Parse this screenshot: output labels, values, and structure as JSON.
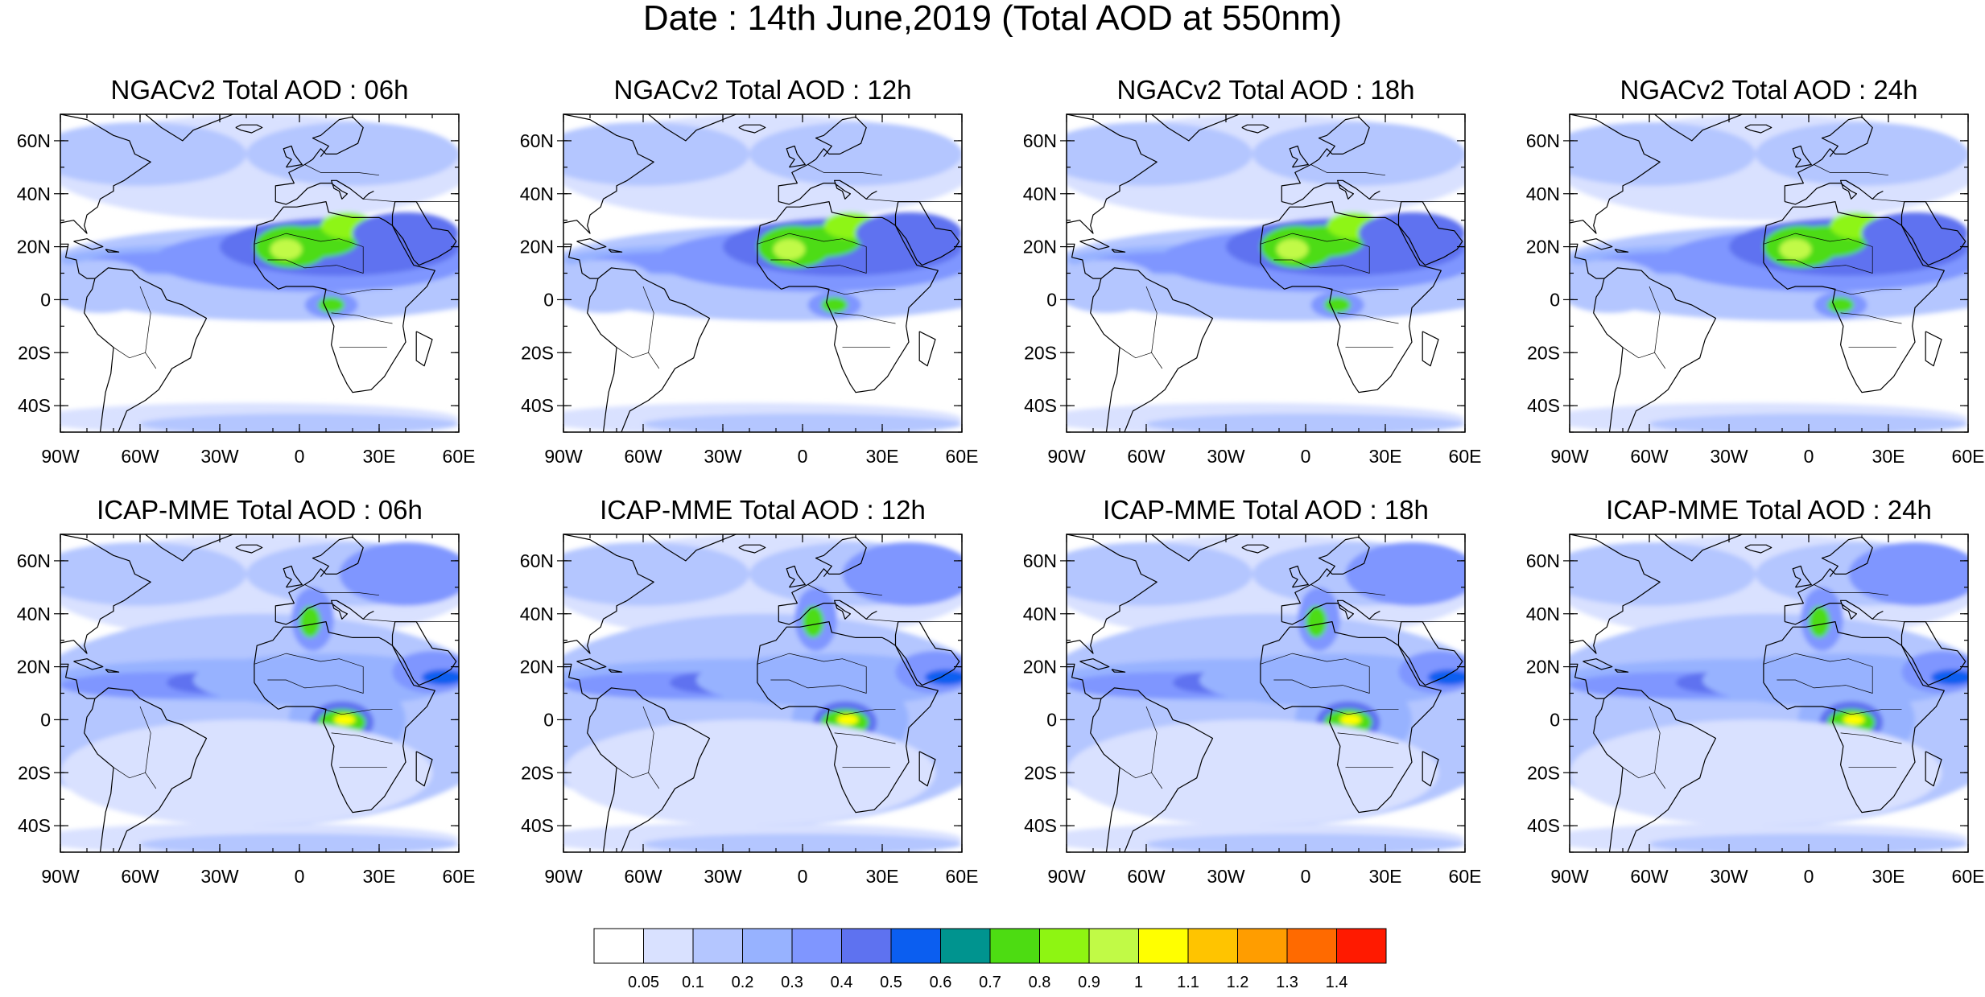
{
  "title": "Date : 14th June,2019 (Total AOD at 550nm)",
  "lat_labels": [
    "60N",
    "40N",
    "20N",
    "0",
    "20S",
    "40S"
  ],
  "lon_labels": [
    "90W",
    "60W",
    "30W",
    "0",
    "30E",
    "60E"
  ],
  "map_extent": {
    "lon": [
      -90,
      60
    ],
    "lat": [
      -50,
      70
    ]
  },
  "panels": [
    {
      "title": "NGACv2 Total AOD : 06h",
      "model": "NGACv2",
      "hour": "06h"
    },
    {
      "title": "NGACv2 Total AOD : 12h",
      "model": "NGACv2",
      "hour": "12h"
    },
    {
      "title": "NGACv2 Total AOD : 18h",
      "model": "NGACv2",
      "hour": "18h"
    },
    {
      "title": "NGACv2 Total AOD : 24h",
      "model": "NGACv2",
      "hour": "24h"
    },
    {
      "title": "ICAP-MME Total AOD : 06h",
      "model": "ICAP-MME",
      "hour": "06h"
    },
    {
      "title": "ICAP-MME Total AOD : 12h",
      "model": "ICAP-MME",
      "hour": "12h"
    },
    {
      "title": "ICAP-MME Total AOD : 18h",
      "model": "ICAP-MME",
      "hour": "18h"
    },
    {
      "title": "ICAP-MME Total AOD : 24h",
      "model": "ICAP-MME",
      "hour": "24h"
    }
  ],
  "colorbar": {
    "labels": [
      "0.05",
      "0.1",
      "0.2",
      "0.3",
      "0.4",
      "0.5",
      "0.6",
      "0.7",
      "0.8",
      "0.9",
      "1",
      "1.1",
      "1.2",
      "1.3",
      "1.4"
    ],
    "colors": [
      "#ffffff",
      "#d9e1ff",
      "#b4c6ff",
      "#97b2ff",
      "#7f96ff",
      "#5e72f0",
      "#0b5ef0",
      "#00948f",
      "#4ddc12",
      "#8ef512",
      "#c1fa46",
      "#ffff00",
      "#ffc400",
      "#ff9d00",
      "#ff6a00",
      "#ff1a00"
    ]
  }
}
